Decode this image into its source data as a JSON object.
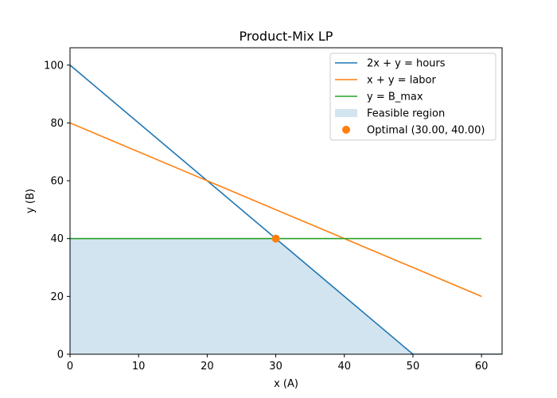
{
  "chart_data": {
    "type": "line",
    "title": "Product-Mix LP",
    "xlabel": "x (A)",
    "ylabel": "y (B)",
    "xlim": [
      0,
      63
    ],
    "ylim": [
      0,
      106
    ],
    "xticks": [
      0,
      10,
      20,
      30,
      40,
      50,
      60
    ],
    "yticks": [
      0,
      20,
      40,
      60,
      80,
      100
    ],
    "grid": false,
    "legend_position": "top-right",
    "series": [
      {
        "name": "2x + y = hours",
        "kind": "line",
        "color": "#1f77b4",
        "points": [
          [
            0,
            100
          ],
          [
            50,
            0
          ],
          [
            63,
            0
          ]
        ]
      },
      {
        "name": "x + y = labor",
        "kind": "line",
        "color": "#ff7f0e",
        "points": [
          [
            0,
            80
          ],
          [
            60,
            20
          ]
        ]
      },
      {
        "name": "y = B_max",
        "kind": "line",
        "color": "#2ca02c",
        "points": [
          [
            0,
            40
          ],
          [
            60,
            40
          ]
        ]
      },
      {
        "name": "Feasible region",
        "kind": "area",
        "color": "#1f77b4",
        "opacity": 0.2,
        "points": [
          [
            0,
            0
          ],
          [
            0,
            40
          ],
          [
            30,
            40
          ],
          [
            50,
            0
          ]
        ]
      },
      {
        "name": "Optimal (30.00, 40.00)",
        "kind": "scatter",
        "color": "#ff7f0e",
        "points": [
          [
            30,
            40
          ]
        ]
      }
    ]
  }
}
